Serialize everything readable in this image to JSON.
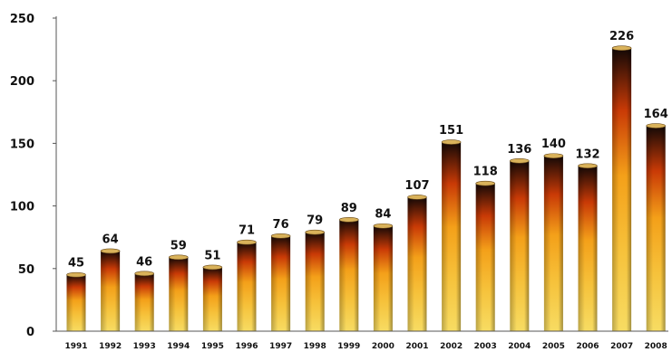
{
  "chart_data": {
    "type": "bar",
    "categories": [
      "1991",
      "1992",
      "1993",
      "1994",
      "1995",
      "1996",
      "1997",
      "1998",
      "1999",
      "2000",
      "2001",
      "2002",
      "2003",
      "2004",
      "2005",
      "2006",
      "2007",
      "2008"
    ],
    "values": [
      45,
      64,
      46,
      59,
      51,
      71,
      76,
      79,
      89,
      84,
      107,
      151,
      118,
      136,
      140,
      132,
      226,
      164
    ],
    "ylim": [
      0,
      250
    ],
    "yticks": [
      0,
      50,
      100,
      150,
      200,
      250
    ],
    "grid": false,
    "legend": "none",
    "colors": {
      "bar_bottom": "#f7dc63",
      "bar_mid": "#f4a019",
      "bar_upper": "#c93a06",
      "bar_top": "#120806",
      "bar_cap": "#d9b25a",
      "axis": "#555555"
    }
  }
}
